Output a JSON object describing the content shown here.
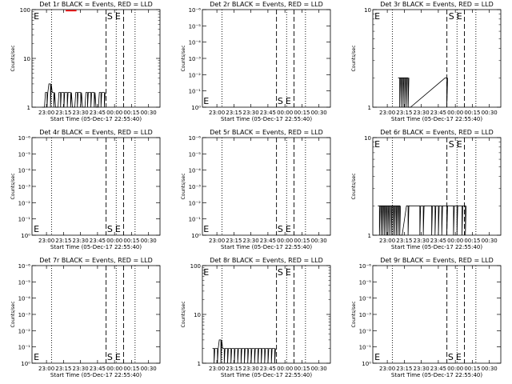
{
  "chart_data": [
    {
      "type": "line",
      "title": "Det 1r BLACK = Events, RED = LLD",
      "ylabel": "Counts/sec",
      "xlabel": "Start Time (05-Dec-17 22:55:40)",
      "x_ticks": [
        "23:00",
        "23:15",
        "23:30",
        "23:45",
        "00:00",
        "00:15",
        "00:30"
      ],
      "y_scale": "log",
      "y_ticks": [
        "1",
        "10",
        "100"
      ],
      "ylim": [
        1,
        100
      ],
      "xlim_min": [
        0,
        38
      ],
      "markers": {
        "E": 0.5,
        "S": 22.3
      },
      "vlines": [
        {
          "x": 5.8,
          "style": "dotted"
        },
        {
          "x": 22.0,
          "style": "dashed"
        },
        {
          "x": 25.0,
          "style": "dotted"
        },
        {
          "x": 27.2,
          "style": "dashed"
        },
        {
          "x": 30.6,
          "style": "dotted"
        }
      ],
      "series": [
        {
          "values": [
            [
              3,
              1
            ],
            [
              4,
              2
            ],
            [
              5,
              3
            ],
            [
              6,
              2
            ],
            [
              7,
              1
            ],
            [
              8,
              2
            ],
            [
              9,
              2
            ],
            [
              10,
              2
            ],
            [
              11,
              2
            ],
            [
              12,
              1
            ],
            [
              13,
              2
            ],
            [
              14,
              2
            ],
            [
              15,
              1
            ],
            [
              16,
              2
            ],
            [
              17,
              2
            ],
            [
              18,
              2
            ],
            [
              19,
              1
            ],
            [
              20,
              2
            ],
            [
              21,
              2
            ]
          ]
        },
        {
          "values": [
            [
              10.0,
              95
            ],
            [
              10.4,
              95
            ],
            [
              10.8,
              95
            ],
            [
              11.2,
              95
            ],
            [
              11.6,
              95
            ],
            [
              12.0,
              95
            ],
            [
              12.4,
              95
            ],
            [
              12.8,
              95
            ],
            [
              13.2,
              95
            ]
          ]
        }
      ]
    },
    {
      "type": "line",
      "title": "Det 2r BLACK = Events, RED = LLD",
      "ylabel": "Counts/sec",
      "xlabel": "Start Time (05-Dec-17 22:55:40)",
      "x_ticks": [
        "23:00",
        "23:15",
        "23:30",
        "23:45",
        "00:00",
        "00:15",
        "00:30"
      ],
      "y_scale": "log",
      "y_ticks": [
        "10⁰",
        "10⁻¹",
        "10⁻²",
        "10⁻³",
        "10⁻⁴",
        "10⁻⁵",
        "10⁻⁶"
      ],
      "markers": {
        "E": 0.3,
        "S": 22.3
      },
      "vlines": [
        {
          "x": 5.8,
          "style": "dotted"
        },
        {
          "x": 22.0,
          "style": "dashed"
        },
        {
          "x": 25.0,
          "style": "dotted"
        },
        {
          "x": 27.2,
          "style": "dashed"
        },
        {
          "x": 30.6,
          "style": "dotted"
        }
      ]
    },
    {
      "type": "line",
      "title": "Det 3r BLACK = Events, RED = LLD",
      "ylabel": "Counts/sec",
      "xlabel": "Start Time (05-Dec-17 22:55:40)",
      "x_ticks": [
        "23:00",
        "23:15",
        "23:30",
        "23:45",
        "00:00",
        "00:15",
        "00:30"
      ],
      "y_scale": "log",
      "y_ticks": [
        "1",
        "10"
      ],
      "ylim": [
        1,
        10
      ],
      "markers": {
        "E": 0.5,
        "S": 22.5
      },
      "vlines": [
        {
          "x": 5.8,
          "style": "dotted"
        },
        {
          "x": 22.0,
          "style": "dashed"
        },
        {
          "x": 25.0,
          "style": "dotted"
        },
        {
          "x": 27.2,
          "style": "dashed"
        },
        {
          "x": 30.6,
          "style": "dotted"
        }
      ],
      "series": [
        {
          "values": [
            [
              7.5,
              2
            ],
            [
              8.0,
              2
            ],
            [
              8.5,
              2
            ],
            [
              9.0,
              2
            ],
            [
              9.5,
              2
            ],
            [
              10.0,
              2
            ],
            [
              10.5,
              1
            ],
            [
              21.5,
              2
            ]
          ]
        }
      ]
    },
    {
      "type": "line",
      "title": "Det 4r BLACK = Events, RED = LLD",
      "ylabel": "Counts/sec",
      "xlabel": "Start Time (05-Dec-17 22:55:40)",
      "x_ticks": [
        "23:00",
        "23:15",
        "23:30",
        "23:45",
        "00:00",
        "00:15",
        "00:30"
      ],
      "y_scale": "log",
      "y_ticks": [
        "10⁰",
        "10⁻¹",
        "10⁻²",
        "10⁻³",
        "10⁻⁴",
        "10⁻⁵",
        "10⁻⁶"
      ],
      "markers": {
        "E": 0.5,
        "S": 22.3
      },
      "vlines": [
        {
          "x": 5.8,
          "style": "dotted"
        },
        {
          "x": 22.0,
          "style": "dashed"
        },
        {
          "x": 25.0,
          "style": "dotted"
        },
        {
          "x": 27.2,
          "style": "dashed"
        },
        {
          "x": 30.6,
          "style": "dotted"
        }
      ]
    },
    {
      "type": "line",
      "title": "Det 5r BLACK = Events, RED = LLD",
      "ylabel": "Counts/sec",
      "xlabel": "Start Time (05-Dec-17 22:55:40)",
      "x_ticks": [
        "23:00",
        "23:15",
        "23:30",
        "23:45",
        "00:00",
        "00:15",
        "00:30"
      ],
      "y_scale": "log",
      "y_ticks": [
        "10⁰",
        "10⁻¹",
        "10⁻²",
        "10⁻³",
        "10⁻⁴",
        "10⁻⁵",
        "10⁻⁶"
      ],
      "markers": {
        "E": 0.3,
        "S": 22.3
      },
      "vlines": [
        {
          "x": 5.8,
          "style": "dotted"
        },
        {
          "x": 22.0,
          "style": "dashed"
        },
        {
          "x": 25.0,
          "style": "dotted"
        },
        {
          "x": 27.2,
          "style": "dashed"
        },
        {
          "x": 30.6,
          "style": "dotted"
        }
      ]
    },
    {
      "type": "line",
      "title": "Det 6r BLACK = Events, RED = LLD",
      "ylabel": "Counts/sec",
      "xlabel": "Start Time (05-Dec-17 22:55:40)",
      "x_ticks": [
        "23:00",
        "23:15",
        "23:30",
        "23:45",
        "00:00",
        "00:15",
        "00:30"
      ],
      "y_scale": "log",
      "y_ticks": [
        "1",
        "10"
      ],
      "ylim": [
        1,
        10
      ],
      "markers": {
        "E": 0.5,
        "S": 22.5
      },
      "vlines": [
        {
          "x": 5.8,
          "style": "dotted"
        },
        {
          "x": 22.0,
          "style": "dashed"
        },
        {
          "x": 25.0,
          "style": "dotted"
        },
        {
          "x": 27.2,
          "style": "dashed"
        },
        {
          "x": 30.6,
          "style": "dotted"
        }
      ],
      "series": [
        {
          "values": [
            [
              1.5,
              2
            ],
            [
              2.0,
              2
            ],
            [
              2.5,
              2
            ],
            [
              3.0,
              2
            ],
            [
              3.5,
              2
            ],
            [
              4.0,
              2
            ],
            [
              4.5,
              2
            ],
            [
              5.0,
              2
            ],
            [
              5.5,
              2
            ],
            [
              6.0,
              2
            ],
            [
              6.5,
              2
            ],
            [
              7.0,
              2
            ],
            [
              7.5,
              2
            ],
            [
              8.0,
              1
            ],
            [
              10.0,
              2
            ],
            [
              13.5,
              2
            ],
            [
              14.5,
              2
            ],
            [
              17.0,
              2
            ],
            [
              18.0,
              2
            ],
            [
              19.0,
              2
            ],
            [
              20.0,
              2
            ],
            [
              21.5,
              2
            ],
            [
              23.5,
              2
            ],
            [
              24.5,
              2
            ],
            [
              26.0,
              2
            ],
            [
              27.0,
              2
            ]
          ]
        }
      ]
    },
    {
      "type": "line",
      "title": "Det 7r BLACK = Events, RED = LLD",
      "ylabel": "Counts/sec",
      "xlabel": "Start Time (05-Dec-17 22:55:40)",
      "x_ticks": [
        "23:00",
        "23:15",
        "23:30",
        "23:45",
        "00:00",
        "00:15",
        "00:30"
      ],
      "y_scale": "log",
      "y_ticks": [
        "10⁰",
        "10⁻¹",
        "10⁻²",
        "10⁻³",
        "10⁻⁴",
        "10⁻⁵",
        "10⁻⁶"
      ],
      "markers": {
        "E": 0.5,
        "S": 22.3
      },
      "vlines": [
        {
          "x": 5.8,
          "style": "dotted"
        },
        {
          "x": 22.0,
          "style": "dashed"
        },
        {
          "x": 25.0,
          "style": "dotted"
        },
        {
          "x": 27.2,
          "style": "dashed"
        },
        {
          "x": 30.6,
          "style": "dotted"
        }
      ]
    },
    {
      "type": "line",
      "title": "Det 8r BLACK = Events, RED = LLD",
      "ylabel": "Counts/sec",
      "xlabel": "Start Time (05-Dec-17 22:55:40)",
      "x_ticks": [
        "23:00",
        "23:15",
        "23:30",
        "23:45",
        "00:00",
        "00:15",
        "00:30"
      ],
      "y_scale": "log",
      "y_ticks": [
        "1",
        "10",
        "100"
      ],
      "ylim": [
        1,
        100
      ],
      "markers": {
        "E": 0.3,
        "S": 22.3
      },
      "vlines": [
        {
          "x": 5.8,
          "style": "dotted"
        },
        {
          "x": 22.0,
          "style": "dashed"
        },
        {
          "x": 25.0,
          "style": "dotted"
        },
        {
          "x": 27.2,
          "style": "dashed"
        },
        {
          "x": 30.6,
          "style": "dotted"
        }
      ],
      "series": [
        {
          "values": [
            [
              3,
              2
            ],
            [
              4,
              2
            ],
            [
              5,
              3
            ],
            [
              6,
              2
            ],
            [
              7,
              2
            ],
            [
              8,
              2
            ],
            [
              9,
              2
            ],
            [
              10,
              2
            ],
            [
              11,
              2
            ],
            [
              12,
              2
            ],
            [
              13,
              2
            ],
            [
              14,
              2
            ],
            [
              15,
              2
            ],
            [
              16,
              2
            ],
            [
              17,
              2
            ],
            [
              18,
              2
            ],
            [
              19,
              2
            ],
            [
              20,
              2
            ],
            [
              21,
              2
            ]
          ]
        }
      ]
    },
    {
      "type": "line",
      "title": "Det 9r BLACK = Events, RED = LLD",
      "ylabel": "Counts/sec",
      "xlabel": "Start Time (05-Dec-17 22:55:40)",
      "x_ticks": [
        "23:00",
        "23:15",
        "23:30",
        "23:45",
        "00:00",
        "00:15",
        "00:30"
      ],
      "y_scale": "log",
      "y_ticks": [
        "10⁰",
        "10⁻¹",
        "10⁻²",
        "10⁻³",
        "10⁻⁴",
        "10⁻⁵",
        "10⁻⁶"
      ],
      "markers": {
        "E": 0.5,
        "S": 22.3
      },
      "vlines": [
        {
          "x": 5.8,
          "style": "dotted"
        },
        {
          "x": 22.0,
          "style": "dashed"
        },
        {
          "x": 25.0,
          "style": "dotted"
        },
        {
          "x": 27.2,
          "style": "dashed"
        },
        {
          "x": 30.6,
          "style": "dotted"
        }
      ]
    }
  ],
  "colors": {
    "events": "#000000",
    "lld": "#ff0000"
  }
}
